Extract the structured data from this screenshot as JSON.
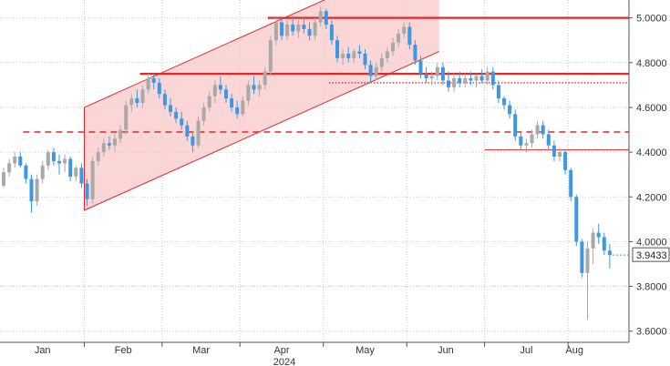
{
  "chart_data": {
    "type": "candlestick",
    "x_axis": {
      "months": [
        "Jan",
        "Feb",
        "Mar",
        "Apr",
        "May",
        "Jun",
        "Jul",
        "Aug"
      ],
      "year": "2024"
    },
    "y_axis": {
      "range": [
        3.55,
        5.08
      ],
      "ticks": [
        "5.0000",
        "4.8000",
        "4.6000",
        "4.4000",
        "4.2000",
        "4.0000",
        "3.8000",
        "3.6000"
      ],
      "position": "right",
      "grid": true
    },
    "last_value": "3.9433",
    "colors": {
      "up": "#a9a9a9",
      "down": "#3d97e3",
      "levels": "#e0282a",
      "channel_fill": "#f9c8c8",
      "grid": "#c9c9c9"
    },
    "candles": [
      [
        4.25,
        4.33,
        4.24,
        4.31
      ],
      [
        4.31,
        4.37,
        4.29,
        4.35
      ],
      [
        4.35,
        4.4,
        4.33,
        4.38
      ],
      [
        4.38,
        4.4,
        4.33,
        4.34
      ],
      [
        4.34,
        4.35,
        4.26,
        4.28
      ],
      [
        4.28,
        4.3,
        4.13,
        4.18
      ],
      [
        4.18,
        4.3,
        4.16,
        4.28
      ],
      [
        4.28,
        4.36,
        4.26,
        4.34
      ],
      [
        4.34,
        4.41,
        4.32,
        4.4
      ],
      [
        4.4,
        4.42,
        4.34,
        4.36
      ],
      [
        4.36,
        4.39,
        4.3,
        4.35
      ],
      [
        4.35,
        4.39,
        4.31,
        4.37
      ],
      [
        4.37,
        4.38,
        4.27,
        4.29
      ],
      [
        4.29,
        4.34,
        4.27,
        4.33
      ],
      [
        4.33,
        4.35,
        4.24,
        4.26
      ],
      [
        4.26,
        4.28,
        4.16,
        4.19
      ],
      [
        4.19,
        4.38,
        4.17,
        4.36
      ],
      [
        4.36,
        4.42,
        4.34,
        4.4
      ],
      [
        4.4,
        4.46,
        4.38,
        4.44
      ],
      [
        4.44,
        4.47,
        4.41,
        4.43
      ],
      [
        4.43,
        4.48,
        4.4,
        4.46
      ],
      [
        4.46,
        4.52,
        4.44,
        4.5
      ],
      [
        4.5,
        4.63,
        4.48,
        4.61
      ],
      [
        4.61,
        4.66,
        4.58,
        4.64
      ],
      [
        4.64,
        4.68,
        4.6,
        4.62
      ],
      [
        4.62,
        4.7,
        4.6,
        4.68
      ],
      [
        4.68,
        4.75,
        4.66,
        4.73
      ],
      [
        4.73,
        4.75,
        4.68,
        4.71
      ],
      [
        4.71,
        4.73,
        4.64,
        4.66
      ],
      [
        4.66,
        4.68,
        4.59,
        4.61
      ],
      [
        4.61,
        4.64,
        4.56,
        4.58
      ],
      [
        4.58,
        4.6,
        4.53,
        4.55
      ],
      [
        4.55,
        4.58,
        4.5,
        4.52
      ],
      [
        4.52,
        4.54,
        4.45,
        4.47
      ],
      [
        4.47,
        4.49,
        4.4,
        4.43
      ],
      [
        4.43,
        4.56,
        4.42,
        4.54
      ],
      [
        4.54,
        4.62,
        4.52,
        4.6
      ],
      [
        4.6,
        4.67,
        4.58,
        4.65
      ],
      [
        4.65,
        4.72,
        4.62,
        4.7
      ],
      [
        4.7,
        4.74,
        4.66,
        4.68
      ],
      [
        4.68,
        4.7,
        4.62,
        4.64
      ],
      [
        4.64,
        4.66,
        4.58,
        4.6
      ],
      [
        4.6,
        4.63,
        4.55,
        4.57
      ],
      [
        4.57,
        4.65,
        4.56,
        4.63
      ],
      [
        4.63,
        4.72,
        4.61,
        4.7
      ],
      [
        4.7,
        4.74,
        4.66,
        4.68
      ],
      [
        4.68,
        4.72,
        4.65,
        4.7
      ],
      [
        4.7,
        4.78,
        4.68,
        4.76
      ],
      [
        4.76,
        4.92,
        4.74,
        4.9
      ],
      [
        4.9,
        5.0,
        4.88,
        4.98
      ],
      [
        4.98,
        5.0,
        4.9,
        4.92
      ],
      [
        4.92,
        4.99,
        4.9,
        4.97
      ],
      [
        4.97,
        5.01,
        4.92,
        4.94
      ],
      [
        4.94,
        4.99,
        4.91,
        4.97
      ],
      [
        4.97,
        5.0,
        4.93,
        4.95
      ],
      [
        4.95,
        4.98,
        4.9,
        4.92
      ],
      [
        4.92,
        5.0,
        4.9,
        4.98
      ],
      [
        4.98,
        5.05,
        4.96,
        5.03
      ],
      [
        5.03,
        5.04,
        4.95,
        4.97
      ],
      [
        4.97,
        4.99,
        4.88,
        4.9
      ],
      [
        4.9,
        4.92,
        4.8,
        4.82
      ],
      [
        4.82,
        4.86,
        4.79,
        4.84
      ],
      [
        4.84,
        4.87,
        4.8,
        4.82
      ],
      [
        4.82,
        4.86,
        4.8,
        4.85
      ],
      [
        4.85,
        4.88,
        4.82,
        4.84
      ],
      [
        4.84,
        4.86,
        4.77,
        4.79
      ],
      [
        4.79,
        4.81,
        4.71,
        4.74
      ],
      [
        4.74,
        4.8,
        4.72,
        4.78
      ],
      [
        4.78,
        4.84,
        4.76,
        4.82
      ],
      [
        4.82,
        4.87,
        4.8,
        4.85
      ],
      [
        4.85,
        4.91,
        4.83,
        4.89
      ],
      [
        4.89,
        4.95,
        4.87,
        4.93
      ],
      [
        4.93,
        4.98,
        4.91,
        4.96
      ],
      [
        4.96,
        4.98,
        4.86,
        4.88
      ],
      [
        4.88,
        4.9,
        4.79,
        4.81
      ],
      [
        4.81,
        4.83,
        4.73,
        4.75
      ],
      [
        4.75,
        4.78,
        4.71,
        4.73
      ],
      [
        4.73,
        4.76,
        4.7,
        4.74
      ],
      [
        4.74,
        4.8,
        4.72,
        4.78
      ],
      [
        4.78,
        4.8,
        4.7,
        4.72
      ],
      [
        4.72,
        4.76,
        4.67,
        4.69
      ],
      [
        4.69,
        4.75,
        4.67,
        4.73
      ],
      [
        4.73,
        4.76,
        4.69,
        4.71
      ],
      [
        4.71,
        4.75,
        4.69,
        4.73
      ],
      [
        4.73,
        4.76,
        4.7,
        4.72
      ],
      [
        4.72,
        4.75,
        4.69,
        4.74
      ],
      [
        4.74,
        4.77,
        4.71,
        4.72
      ],
      [
        4.72,
        4.78,
        4.7,
        4.76
      ],
      [
        4.76,
        4.78,
        4.68,
        4.7
      ],
      [
        4.7,
        4.72,
        4.62,
        4.64
      ],
      [
        4.64,
        4.65,
        4.59,
        4.61
      ],
      [
        4.61,
        4.63,
        4.55,
        4.57
      ],
      [
        4.57,
        4.59,
        4.45,
        4.47
      ],
      [
        4.47,
        4.49,
        4.41,
        4.43
      ],
      [
        4.43,
        4.46,
        4.4,
        4.44
      ],
      [
        4.44,
        4.5,
        4.42,
        4.48
      ],
      [
        4.48,
        4.54,
        4.46,
        4.52
      ],
      [
        4.52,
        4.54,
        4.46,
        4.48
      ],
      [
        4.48,
        4.5,
        4.41,
        4.43
      ],
      [
        4.43,
        4.45,
        4.36,
        4.38
      ],
      [
        4.38,
        4.42,
        4.36,
        4.4
      ],
      [
        4.4,
        4.41,
        4.3,
        4.32
      ],
      [
        4.32,
        4.33,
        4.18,
        4.2
      ],
      [
        4.2,
        4.21,
        3.98,
        4.0
      ],
      [
        4.0,
        4.01,
        3.84,
        3.86
      ],
      [
        3.86,
        4.0,
        3.65,
        3.97
      ],
      [
        3.97,
        4.06,
        3.9,
        4.04
      ],
      [
        4.04,
        4.08,
        3.99,
        4.02
      ],
      [
        4.02,
        4.04,
        3.94,
        3.96
      ],
      [
        3.96,
        3.99,
        3.88,
        3.94
      ]
    ],
    "levels": [
      {
        "y": 4.49,
        "from": 4,
        "to": 110,
        "style": "dashed"
      },
      {
        "y": 4.75,
        "from": 25,
        "to": 110,
        "style": "solid"
      },
      {
        "y": 5.0,
        "from": 48,
        "to": 110,
        "style": "solid"
      },
      {
        "y": 4.71,
        "from": 59,
        "to": 110,
        "style": "dotted"
      },
      {
        "y": 4.41,
        "from": 87,
        "to": 110,
        "style": "solid-thin"
      }
    ],
    "channel": {
      "from": 15,
      "to": 78,
      "lower": [
        4.14,
        4.85
      ],
      "upper": [
        4.6,
        5.31
      ]
    }
  }
}
